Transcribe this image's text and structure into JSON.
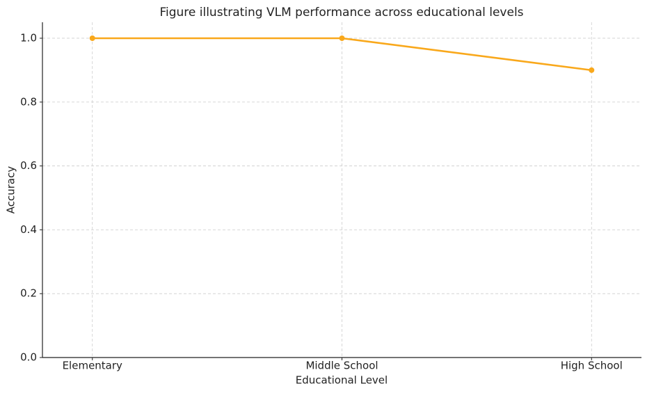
{
  "chart_data": {
    "type": "line",
    "title": "Figure illustrating VLM performance across educational levels",
    "x_label": "Educational Level",
    "y_label": "Accuracy",
    "categories": [
      "Elementary",
      "Middle School",
      "High School"
    ],
    "values": [
      1.0,
      1.0,
      0.9
    ],
    "color": "#f9a81b",
    "ylim": [
      0,
      1.05
    ],
    "yticks": [
      {
        "value": 0,
        "label": "0.0"
      },
      0.2,
      0.4,
      0.6,
      0.8,
      {
        "value": 1,
        "label": "1.0"
      }
    ],
    "grid": true
  }
}
